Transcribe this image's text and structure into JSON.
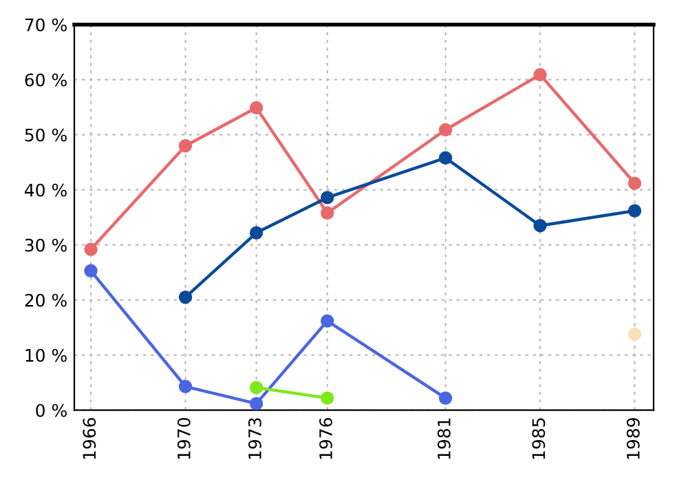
{
  "chart_data": {
    "type": "line",
    "x": [
      1966,
      1970,
      1973,
      1976,
      1981,
      1985,
      1989
    ],
    "series": [
      {
        "color": "#e8696b",
        "values": [
          29.2,
          48,
          54.9,
          35.8,
          50.9,
          60.9,
          41.2
        ]
      },
      {
        "color": "#0a4a98",
        "values": [
          null,
          20.5,
          32.2,
          38.6,
          45.8,
          33.5,
          36.2
        ]
      },
      {
        "color": "#4a66e0",
        "values": [
          25.3,
          4.3,
          1.2,
          16.2,
          2.2,
          null,
          null
        ]
      },
      {
        "color": "#7ee81a",
        "values": [
          null,
          null,
          4.1,
          2.2,
          null,
          null,
          null
        ]
      },
      {
        "color": "#fde0b8",
        "values": [
          null,
          null,
          null,
          null,
          null,
          null,
          13.8
        ]
      }
    ],
    "xlim": [
      1965.3,
      1989.8
    ],
    "xticks": [
      1966,
      1970,
      1973,
      1976,
      1981,
      1985,
      1989
    ],
    "ylim": [
      0,
      70
    ],
    "yticks": [
      {
        "value": 0,
        "label": "0 %"
      },
      {
        "value": 10,
        "label": "10 %"
      },
      {
        "value": 20,
        "label": "20 %"
      },
      {
        "value": 30,
        "label": "30 %"
      },
      {
        "value": 40,
        "label": "40 %"
      },
      {
        "value": 50,
        "label": "50 %"
      },
      {
        "value": 60,
        "label": "60 %"
      },
      {
        "value": 70,
        "label": "70 %"
      }
    ],
    "grid": true,
    "marker": "circle",
    "line_style": "solid"
  }
}
